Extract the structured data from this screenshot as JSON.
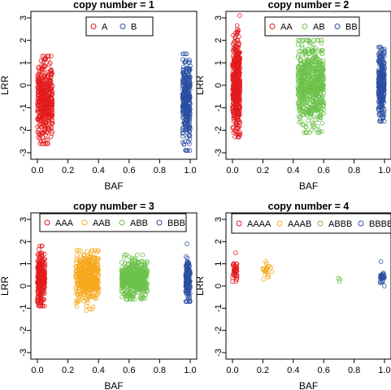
{
  "chart_data": [
    {
      "type": "scatter",
      "title": "copy number = 1",
      "xlabel": "BAF",
      "ylabel": "LRR",
      "xlim": [
        0,
        1
      ],
      "ylim": [
        -3,
        3
      ],
      "xticks": [
        "0.0",
        "0.2",
        "0.4",
        "0.6",
        "0.8",
        "1.0"
      ],
      "yticks": [
        "-3",
        "-2",
        "-1",
        "0",
        "1",
        "2",
        "3"
      ],
      "legend": {
        "placement": "top-center",
        "entries": [
          "A",
          "B"
        ]
      },
      "series": [
        {
          "name": "A",
          "color": "#e31a1c",
          "x_range": [
            0.0,
            0.1
          ],
          "y_center": -0.6,
          "y_range": [
            -2.6,
            1.3
          ]
        },
        {
          "name": "B",
          "color": "#2b4fa2",
          "x_range": [
            0.95,
            1.0
          ],
          "y_center": -0.6,
          "y_range": [
            -2.9,
            1.4
          ]
        }
      ]
    },
    {
      "type": "scatter",
      "title": "copy number = 2",
      "xlabel": "BAF",
      "ylabel": "LRR",
      "xlim": [
        0,
        1
      ],
      "ylim": [
        -3,
        3
      ],
      "xticks": [
        "0.0",
        "0.2",
        "0.4",
        "0.6",
        "0.8",
        "1.0"
      ],
      "yticks": [
        "-3",
        "-2",
        "-1",
        "0",
        "1",
        "2",
        "3"
      ],
      "legend": {
        "placement": "top-center",
        "entries": [
          "AA",
          "AB",
          "BB"
        ]
      },
      "series": [
        {
          "name": "AA",
          "color": "#e31a1c",
          "x_range": [
            0.0,
            0.05
          ],
          "y_center": 0.0,
          "y_range": [
            -2.3,
            3.1
          ]
        },
        {
          "name": "AB",
          "color": "#6cc24a",
          "x_range": [
            0.43,
            0.6
          ],
          "y_center": 0.1,
          "y_range": [
            -2.1,
            2.0
          ]
        },
        {
          "name": "BB",
          "color": "#2b4fa2",
          "x_range": [
            0.96,
            1.0
          ],
          "y_center": 0.0,
          "y_range": [
            -1.6,
            1.7
          ]
        }
      ]
    },
    {
      "type": "scatter",
      "title": "copy number = 3",
      "xlabel": "BAF",
      "ylabel": "LRR",
      "xlim": [
        0,
        1
      ],
      "ylim": [
        -3,
        3
      ],
      "xticks": [
        "0.0",
        "0.2",
        "0.4",
        "0.6",
        "0.8",
        "1.0"
      ],
      "yticks": [
        "-3",
        "-2",
        "-1",
        "0",
        "1",
        "2",
        "3"
      ],
      "legend": {
        "placement": "top-center",
        "entries": [
          "AAA",
          "AAB",
          "ABB",
          "BBB"
        ]
      },
      "series": [
        {
          "name": "AAA",
          "color": "#e31a1c",
          "x_range": [
            0.0,
            0.05
          ],
          "y_center": 0.4,
          "y_range": [
            -0.9,
            1.8
          ]
        },
        {
          "name": "AAB",
          "color": "#f6a81c",
          "x_range": [
            0.25,
            0.4
          ],
          "y_center": 0.4,
          "y_range": [
            -1.1,
            1.6
          ]
        },
        {
          "name": "ABB",
          "color": "#6cc24a",
          "x_range": [
            0.55,
            0.72
          ],
          "y_center": 0.3,
          "y_range": [
            -0.6,
            1.4
          ]
        },
        {
          "name": "BBB",
          "color": "#2b4fa2",
          "x_range": [
            0.97,
            1.0
          ],
          "y_center": 0.3,
          "y_range": [
            -0.7,
            1.9
          ]
        }
      ]
    },
    {
      "type": "scatter",
      "title": "copy number = 4",
      "xlabel": "BAF",
      "ylabel": "LRR",
      "xlim": [
        0,
        1
      ],
      "ylim": [
        -3,
        3
      ],
      "xticks": [
        "0.0",
        "0.2",
        "0.4",
        "0.6",
        "0.8",
        "1.0"
      ],
      "yticks": [
        "-3",
        "-2",
        "-1",
        "0",
        "1",
        "2",
        "3"
      ],
      "legend": {
        "placement": "top-center",
        "entries": [
          "AAAA",
          "AAAB",
          "ABBB",
          "BBBB"
        ]
      },
      "series": [
        {
          "name": "AAAA",
          "color": "#e31a1c",
          "x_range": [
            0.0,
            0.03
          ],
          "y_center": 0.7,
          "y_range": [
            0.2,
            1.5
          ]
        },
        {
          "name": "AAAB",
          "color": "#f6a81c",
          "x_range": [
            0.2,
            0.26
          ],
          "y_center": 0.7,
          "y_range": [
            0.3,
            1.1
          ]
        },
        {
          "name": "ABBB",
          "color": "#6cc24a",
          "x_range": [
            0.69,
            0.71
          ],
          "y_center": 0.28,
          "y_range": [
            0.2,
            0.35
          ]
        },
        {
          "name": "BBBB",
          "color": "#2b4fa2",
          "x_range": [
            0.97,
            1.0
          ],
          "y_center": 0.35,
          "y_range": [
            0.0,
            1.1
          ]
        }
      ]
    }
  ]
}
